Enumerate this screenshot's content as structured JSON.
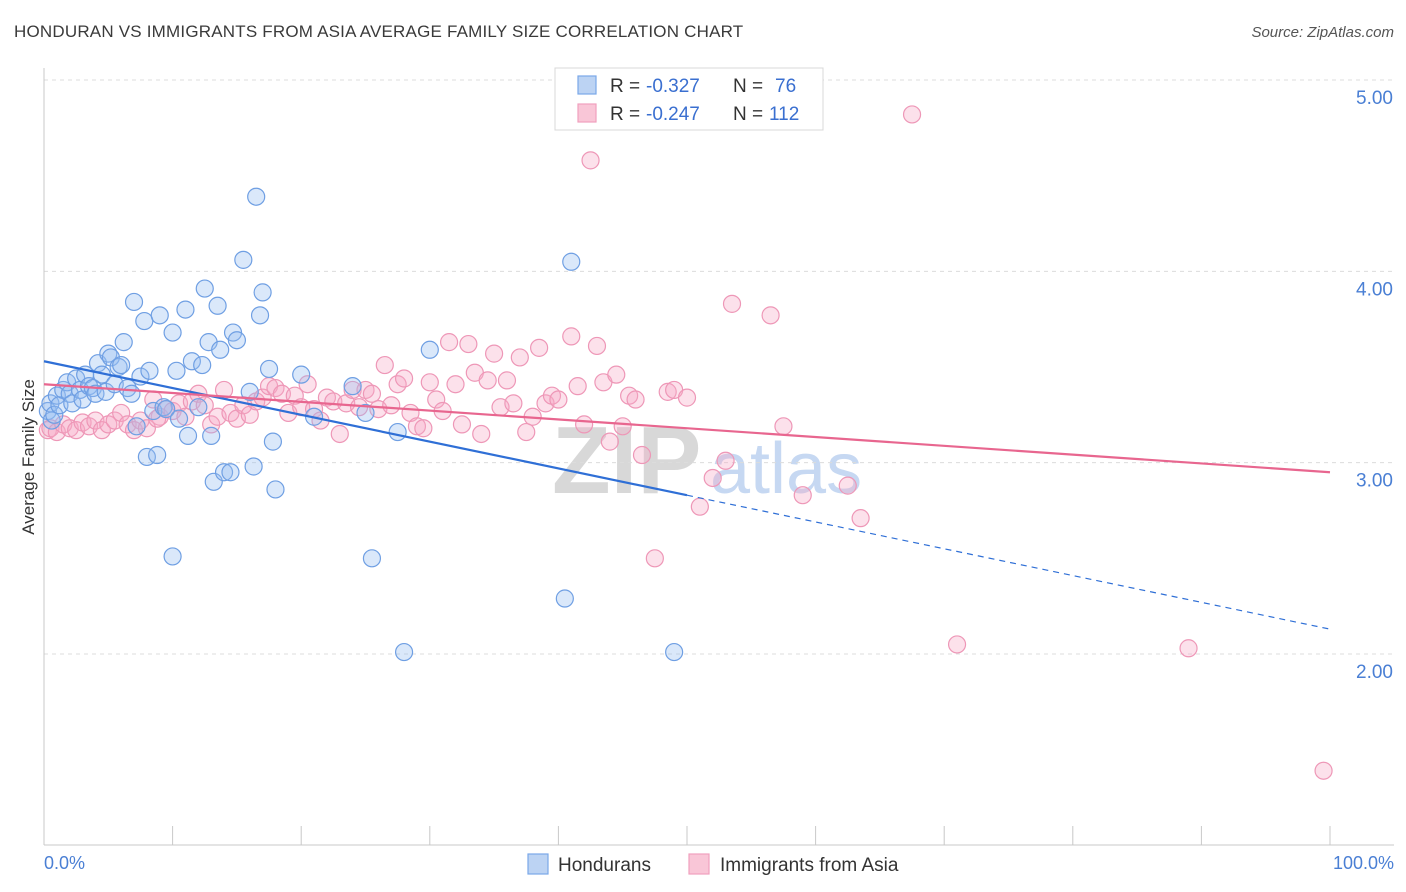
{
  "title": "HONDURAN VS IMMIGRANTS FROM ASIA AVERAGE FAMILY SIZE CORRELATION CHART",
  "source": "Source: ZipAtlas.com",
  "watermark": {
    "zip": "ZIP",
    "atlas": "atlas"
  },
  "colors": {
    "blue": "#7aa8e8",
    "blue_line": "#2f6fd6",
    "pink": "#f0a0bd",
    "pink_line": "#e8668f",
    "tick_text": "#4a7fd4"
  },
  "legend": {
    "rows": [
      {
        "r_label": "R =",
        "r_value": "-0.327",
        "n_label": "N =",
        "n_value": "76"
      },
      {
        "r_label": "R =",
        "r_value": "-0.247",
        "n_label": "N =",
        "n_value": "112"
      }
    ]
  },
  "chart_data": {
    "type": "scatter",
    "title": "HONDURAN VS IMMIGRANTS FROM ASIA AVERAGE FAMILY SIZE CORRELATION CHART",
    "xlabel": "",
    "ylabel": "Average Family Size",
    "xlim": [
      0,
      100
    ],
    "ylim": [
      1.0,
      5.1
    ],
    "x_tick_labels": [
      "0.0%",
      "100.0%"
    ],
    "y_ticks": [
      2.0,
      3.0,
      4.0,
      5.0
    ],
    "y_tick_labels": [
      "2.00",
      "3.00",
      "4.00",
      "5.00"
    ],
    "grid": true,
    "series": [
      {
        "name": "Hondurans",
        "r": -0.327,
        "n": 76,
        "trend": {
          "x0": 0,
          "y0": 3.53,
          "x1": 50,
          "y1": 2.83,
          "dashed_to_x": 100,
          "dashed_to_y": 2.13
        },
        "points": [
          [
            0.3,
            3.27
          ],
          [
            0.5,
            3.31
          ],
          [
            0.6,
            3.22
          ],
          [
            0.8,
            3.25
          ],
          [
            1.0,
            3.35
          ],
          [
            1.2,
            3.3
          ],
          [
            1.5,
            3.38
          ],
          [
            1.8,
            3.42
          ],
          [
            2.0,
            3.36
          ],
          [
            2.2,
            3.31
          ],
          [
            2.5,
            3.44
          ],
          [
            2.8,
            3.38
          ],
          [
            3.0,
            3.33
          ],
          [
            3.2,
            3.46
          ],
          [
            3.5,
            3.4
          ],
          [
            3.8,
            3.39
          ],
          [
            4.0,
            3.36
          ],
          [
            4.2,
            3.52
          ],
          [
            4.5,
            3.46
          ],
          [
            4.8,
            3.37
          ],
          [
            5.0,
            3.57
          ],
          [
            5.2,
            3.55
          ],
          [
            5.5,
            3.41
          ],
          [
            5.8,
            3.5
          ],
          [
            6.0,
            3.51
          ],
          [
            6.2,
            3.63
          ],
          [
            6.5,
            3.39
          ],
          [
            6.8,
            3.36
          ],
          [
            7.0,
            3.84
          ],
          [
            7.2,
            3.19
          ],
          [
            7.5,
            3.45
          ],
          [
            7.8,
            3.74
          ],
          [
            8.0,
            3.03
          ],
          [
            8.2,
            3.48
          ],
          [
            8.5,
            3.27
          ],
          [
            8.8,
            3.04
          ],
          [
            9.0,
            3.77
          ],
          [
            9.3,
            3.29
          ],
          [
            9.5,
            3.28
          ],
          [
            10.0,
            3.68
          ],
          [
            10.3,
            3.48
          ],
          [
            10.5,
            3.23
          ],
          [
            11.0,
            3.8
          ],
          [
            11.2,
            3.14
          ],
          [
            11.5,
            3.53
          ],
          [
            12.0,
            3.29
          ],
          [
            12.3,
            3.51
          ],
          [
            12.5,
            3.91
          ],
          [
            12.8,
            3.63
          ],
          [
            13.0,
            3.14
          ],
          [
            13.2,
            2.9
          ],
          [
            13.5,
            3.82
          ],
          [
            13.7,
            3.59
          ],
          [
            14.0,
            2.95
          ],
          [
            14.5,
            2.95
          ],
          [
            14.7,
            3.68
          ],
          [
            15.0,
            3.64
          ],
          [
            15.5,
            4.06
          ],
          [
            16.0,
            3.37
          ],
          [
            16.3,
            2.98
          ],
          [
            16.5,
            4.39
          ],
          [
            16.8,
            3.77
          ],
          [
            17.0,
            3.89
          ],
          [
            17.5,
            3.49
          ],
          [
            17.8,
            3.11
          ],
          [
            18.0,
            2.86
          ],
          [
            20.0,
            3.46
          ],
          [
            21.0,
            3.24
          ],
          [
            10.0,
            2.51
          ],
          [
            24.0,
            3.4
          ],
          [
            25.0,
            3.26
          ],
          [
            25.5,
            2.5
          ],
          [
            27.5,
            3.16
          ],
          [
            28.0,
            2.01
          ],
          [
            30.0,
            3.59
          ],
          [
            40.5,
            2.29
          ],
          [
            41.0,
            4.05
          ],
          [
            49.0,
            2.01
          ]
        ]
      },
      {
        "name": "Immigrants from Asia",
        "r": -0.247,
        "n": 112,
        "trend": {
          "x0": 0,
          "y0": 3.41,
          "x1": 100,
          "y1": 2.95
        },
        "points": [
          [
            0.3,
            3.17
          ],
          [
            0.5,
            3.18
          ],
          [
            1.0,
            3.16
          ],
          [
            1.5,
            3.2
          ],
          [
            2.0,
            3.18
          ],
          [
            2.5,
            3.17
          ],
          [
            3.0,
            3.21
          ],
          [
            3.5,
            3.19
          ],
          [
            4.0,
            3.22
          ],
          [
            4.5,
            3.17
          ],
          [
            5.0,
            3.2
          ],
          [
            5.5,
            3.22
          ],
          [
            6.0,
            3.26
          ],
          [
            6.5,
            3.2
          ],
          [
            7.0,
            3.17
          ],
          [
            7.5,
            3.22
          ],
          [
            8.0,
            3.18
          ],
          [
            8.5,
            3.33
          ],
          [
            9.0,
            3.24
          ],
          [
            9.5,
            3.28
          ],
          [
            10.0,
            3.27
          ],
          [
            10.5,
            3.31
          ],
          [
            11.0,
            3.24
          ],
          [
            11.5,
            3.32
          ],
          [
            12.0,
            3.36
          ],
          [
            12.5,
            3.3
          ],
          [
            13.0,
            3.2
          ],
          [
            13.5,
            3.24
          ],
          [
            14.0,
            3.38
          ],
          [
            14.5,
            3.26
          ],
          [
            15.0,
            3.23
          ],
          [
            15.5,
            3.3
          ],
          [
            16.0,
            3.25
          ],
          [
            16.5,
            3.32
          ],
          [
            17.0,
            3.34
          ],
          [
            17.5,
            3.4
          ],
          [
            18.0,
            3.39
          ],
          [
            18.5,
            3.36
          ],
          [
            19.0,
            3.26
          ],
          [
            19.5,
            3.35
          ],
          [
            20.0,
            3.29
          ],
          [
            20.5,
            3.41
          ],
          [
            21.0,
            3.28
          ],
          [
            21.5,
            3.22
          ],
          [
            22.0,
            3.34
          ],
          [
            22.5,
            3.32
          ],
          [
            23.0,
            3.15
          ],
          [
            23.5,
            3.31
          ],
          [
            24.0,
            3.38
          ],
          [
            24.5,
            3.29
          ],
          [
            25.0,
            3.38
          ],
          [
            25.5,
            3.36
          ],
          [
            26.0,
            3.28
          ],
          [
            26.5,
            3.51
          ],
          [
            27.0,
            3.3
          ],
          [
            27.5,
            3.41
          ],
          [
            28.0,
            3.44
          ],
          [
            28.5,
            3.26
          ],
          [
            29.0,
            3.19
          ],
          [
            29.5,
            3.18
          ],
          [
            30.0,
            3.42
          ],
          [
            30.5,
            3.33
          ],
          [
            31.0,
            3.27
          ],
          [
            31.5,
            3.63
          ],
          [
            32.0,
            3.41
          ],
          [
            32.5,
            3.2
          ],
          [
            33.0,
            3.62
          ],
          [
            33.5,
            3.47
          ],
          [
            34.0,
            3.15
          ],
          [
            34.5,
            3.43
          ],
          [
            35.0,
            3.57
          ],
          [
            35.5,
            3.29
          ],
          [
            36.0,
            3.43
          ],
          [
            36.5,
            3.31
          ],
          [
            37.0,
            3.55
          ],
          [
            37.5,
            3.16
          ],
          [
            38.0,
            3.24
          ],
          [
            38.5,
            3.6
          ],
          [
            39.0,
            3.31
          ],
          [
            39.5,
            3.35
          ],
          [
            40.0,
            3.33
          ],
          [
            41.0,
            3.66
          ],
          [
            41.5,
            3.4
          ],
          [
            42.0,
            3.2
          ],
          [
            42.5,
            4.58
          ],
          [
            43.0,
            3.61
          ],
          [
            43.5,
            3.42
          ],
          [
            44.0,
            3.11
          ],
          [
            44.5,
            3.46
          ],
          [
            45.0,
            3.19
          ],
          [
            45.5,
            3.35
          ],
          [
            46.0,
            3.33
          ],
          [
            46.5,
            3.04
          ],
          [
            47.5,
            2.5
          ],
          [
            48.5,
            3.37
          ],
          [
            49.0,
            3.38
          ],
          [
            50.0,
            3.34
          ],
          [
            51.0,
            2.77
          ],
          [
            52.0,
            2.92
          ],
          [
            53.0,
            3.01
          ],
          [
            53.5,
            3.83
          ],
          [
            56.5,
            3.77
          ],
          [
            57.5,
            3.19
          ],
          [
            59.0,
            2.83
          ],
          [
            62.5,
            2.88
          ],
          [
            63.5,
            2.71
          ],
          [
            67.5,
            4.82
          ],
          [
            71.0,
            2.05
          ],
          [
            89.0,
            2.03
          ],
          [
            99.5,
            1.39
          ],
          [
            8.8,
            3.23
          ]
        ]
      }
    ]
  }
}
